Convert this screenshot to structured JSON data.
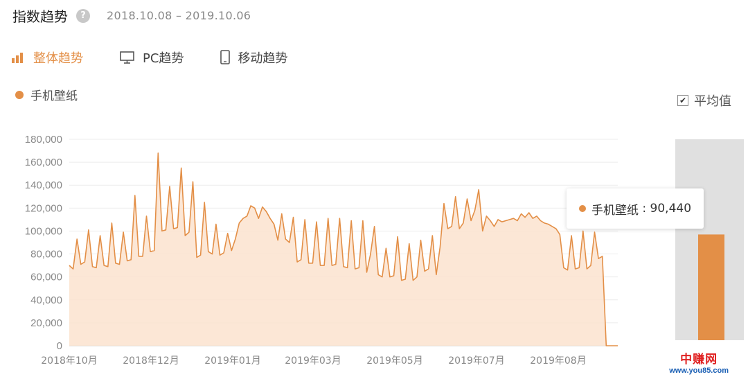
{
  "header": {
    "title": "指数趋势",
    "help_icon": "question-icon",
    "date_range": "2018.10.08 – 2019.10.06"
  },
  "tabs": [
    {
      "label": "整体趋势",
      "icon": "bar-chart-icon",
      "active": true
    },
    {
      "label": "PC趋势",
      "icon": "monitor-icon",
      "active": false
    },
    {
      "label": "移动趋势",
      "icon": "mobile-icon",
      "active": false
    }
  ],
  "legend": {
    "label": "手机壁纸"
  },
  "average_toggle": {
    "label": "平均值",
    "checked": true
  },
  "tooltip": {
    "series": "手机壁纸",
    "value_text": "90,440"
  },
  "colors": {
    "accent": "#e38f47",
    "fill": "#fbe3cf",
    "avg_bg": "#e0e0e0"
  },
  "watermark": {
    "line1": "中赚网",
    "line2": "www.you85.com"
  },
  "chart_data": {
    "type": "area",
    "title": "",
    "xlabel": "",
    "ylabel": "",
    "ylim": [
      0,
      180000
    ],
    "y_ticks": [
      "0",
      "20,000",
      "40,000",
      "60,000",
      "80,000",
      "100,000",
      "120,000",
      "140,000",
      "160,000",
      "180,000"
    ],
    "x_tick_labels": [
      "2018年10月",
      "2018年12月",
      "2019年01月",
      "2019年03月",
      "2019年05月",
      "2019年07月",
      "2019年08月"
    ],
    "grid": true,
    "series": [
      {
        "name": "手机壁纸",
        "values": [
          70000,
          67000,
          93000,
          71000,
          73000,
          101000,
          69000,
          68000,
          96000,
          70000,
          69000,
          107000,
          72000,
          71000,
          99000,
          74000,
          75000,
          131000,
          78000,
          78000,
          113000,
          82000,
          83000,
          168000,
          100000,
          101000,
          139000,
          102000,
          103000,
          155000,
          96000,
          99000,
          143000,
          77000,
          79000,
          125000,
          82000,
          80000,
          106000,
          79000,
          81000,
          98000,
          83000,
          93000,
          107000,
          111000,
          113000,
          122000,
          120000,
          111000,
          121000,
          117000,
          111000,
          106000,
          92000,
          115000,
          93000,
          90000,
          112000,
          73000,
          75000,
          110000,
          72000,
          72000,
          108000,
          70000,
          70000,
          111000,
          70000,
          71000,
          111000,
          69000,
          68000,
          109000,
          67000,
          68000,
          109000,
          64000,
          80000,
          104000,
          62000,
          60000,
          85000,
          60000,
          61000,
          95000,
          57000,
          58000,
          89000,
          57000,
          60000,
          92000,
          65000,
          67000,
          96000,
          62000,
          86000,
          124000,
          102000,
          104000,
          130000,
          102000,
          107000,
          128000,
          109000,
          118000,
          136000,
          100000,
          113000,
          109000,
          104000,
          110000,
          108000,
          109000,
          110000,
          111000,
          109000,
          115000,
          112000,
          116000,
          111000,
          113000,
          109000,
          107000,
          106000,
          104000,
          102000,
          97000,
          68000,
          66000,
          96000,
          67000,
          68000,
          100000,
          67000,
          70000,
          99000,
          76000,
          78000,
          0,
          0,
          0,
          0
        ]
      }
    ],
    "average": {
      "label": "平均值",
      "value": 97000
    }
  }
}
